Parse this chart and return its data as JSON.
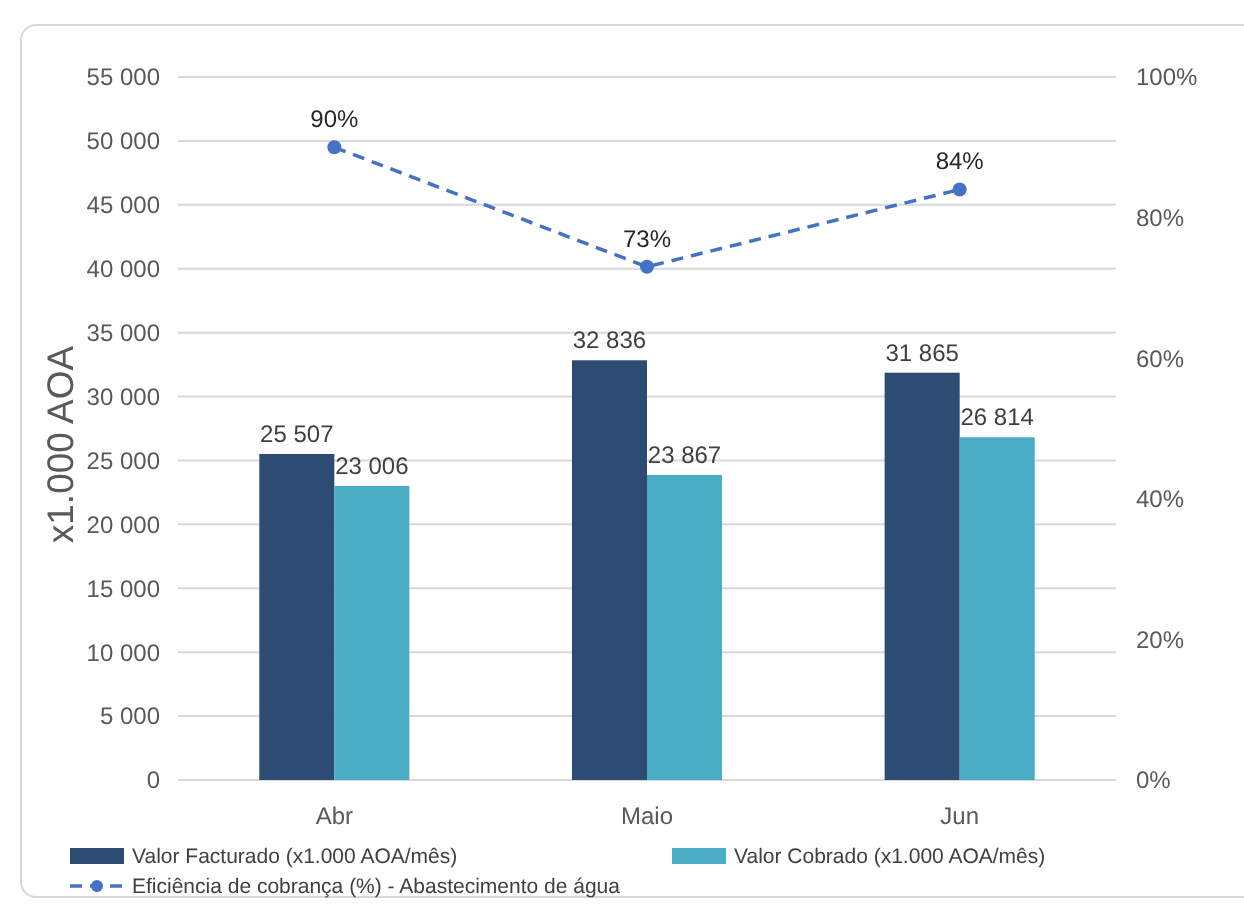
{
  "chart_data": {
    "type": "bar",
    "categories": [
      "Abr",
      "Maio",
      "Jun"
    ],
    "ylabel": "x1.000 AOA",
    "ylim": [
      0,
      55000
    ],
    "yticks": [
      0,
      {
        "value": 5000,
        "label": "5 000"
      },
      {
        "value": 10000,
        "label": "10 000"
      },
      {
        "value": 15000,
        "label": "15 000"
      },
      {
        "value": 20000,
        "label": "20 000"
      },
      {
        "value": 25000,
        "label": "25 000"
      },
      {
        "value": 30000,
        "label": "30 000"
      },
      {
        "value": 35000,
        "label": "35 000"
      },
      {
        "value": 40000,
        "label": "40 000"
      },
      {
        "value": 45000,
        "label": "45 000"
      },
      {
        "value": 50000,
        "label": "50 000"
      },
      {
        "value": 55000,
        "label": "55 000"
      }
    ],
    "y2lim": [
      0,
      100
    ],
    "y2ticks": [
      {
        "value": 0,
        "label": "0%"
      },
      {
        "value": 20,
        "label": "20%"
      },
      {
        "value": 40,
        "label": "40%"
      },
      {
        "value": 60,
        "label": "60%"
      },
      {
        "value": 80,
        "label": "80%"
      },
      {
        "value": 100,
        "label": "100%"
      }
    ],
    "series": [
      {
        "name": "Valor Facturado (x1.000 AOA/mês)",
        "color": "#2e4b73",
        "values": [
          25507,
          32836,
          31865
        ],
        "value_labels": [
          "25 507",
          "32 836",
          "31 865"
        ]
      },
      {
        "name": "Valor Cobrado (x1.000 AOA/mês)",
        "color": "#4bacc6",
        "values": [
          23006,
          23867,
          26814
        ],
        "value_labels": [
          "23 006",
          "23 867",
          "26 814"
        ]
      },
      {
        "name": "Eficiência de cobrança (%) - Abastecimento de água",
        "type": "line",
        "axis": "y2",
        "color": "#4472c4",
        "values": [
          90,
          73,
          84
        ],
        "value_labels": [
          "90%",
          "73%",
          "84%"
        ],
        "marker": "circle",
        "line_style": "dashed"
      }
    ],
    "grid": "y",
    "legend": "bottom"
  }
}
